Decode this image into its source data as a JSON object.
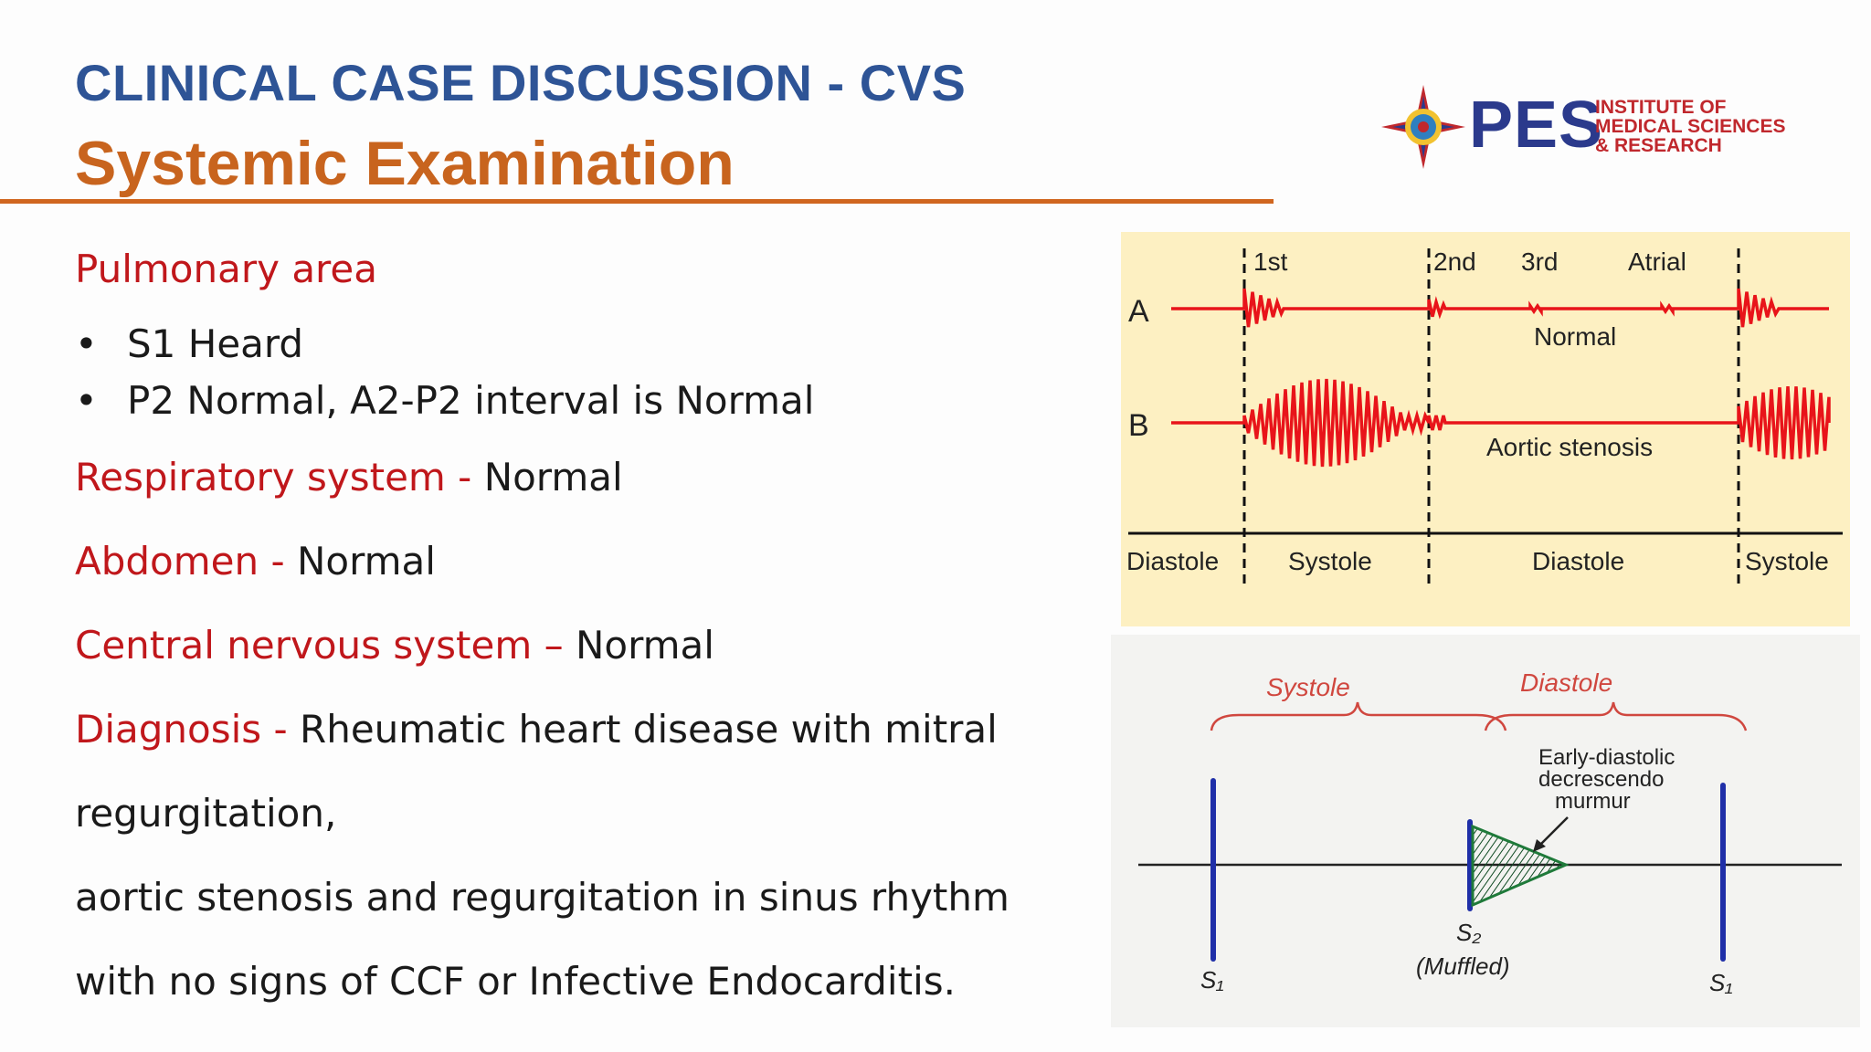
{
  "header": {
    "title": "CLINICAL CASE DISCUSSION - CVS",
    "subtitle": "Systemic Examination"
  },
  "logo": {
    "name": "PES",
    "line1": "INSTITUTE OF",
    "line2": "MEDICAL SCIENCES",
    "line3": "& RESEARCH"
  },
  "content": {
    "pulmonary_heading": "Pulmonary area",
    "bullets": [
      "S1 Heard",
      "P2 Normal, A2-P2 interval is Normal"
    ],
    "bullet_symbol": "•",
    "respiratory_label": "Respiratory system - ",
    "respiratory_value": "Normal",
    "abdomen_label": "Abdomen - ",
    "abdomen_value": "Normal",
    "cns_label": "Central nervous system – ",
    "cns_value": "Normal",
    "diagnosis_label": "Diagnosis - ",
    "diagnosis_lines": [
      "Rheumatic heart disease with mitral",
      "regurgitation,",
      "aortic stenosis and regurgitation in sinus rhythm",
      "with no signs of CCF or Infective Endocarditis."
    ]
  },
  "figure_top": {
    "row_a": "A",
    "row_b": "B",
    "sound_1": "1st",
    "sound_2": "2nd",
    "sound_3": "3rd",
    "sound_atrial": "Atrial",
    "normal_label": "Normal",
    "stenosis_label": "Aortic stenosis",
    "phase_labels": [
      "Diastole",
      "Systole",
      "Diastole",
      "Systole"
    ],
    "trace_color": "#e8141a"
  },
  "figure_bottom": {
    "systole": "Systole",
    "diastole": "Diastole",
    "annotation": [
      "Early-diastolic",
      "decrescendo",
      "murmur"
    ],
    "s1_left": "S₁",
    "s2": "S₂",
    "s2_note": "(Muffled)",
    "s1_right": "S₁",
    "murmur_color": "#1f7a3a",
    "marker_color": "#1f2fa8"
  }
}
